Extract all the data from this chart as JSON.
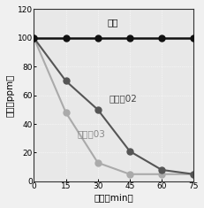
{
  "x": [
    0,
    15,
    30,
    45,
    60,
    75
  ],
  "series": [
    {
      "label": "暗所",
      "y": [
        100,
        100,
        100,
        100,
        100,
        100
      ],
      "color": "#111111",
      "linewidth": 1.8,
      "markersize": 5,
      "marker": "o",
      "zorder": 3
    },
    {
      "label": "催化刲02",
      "y": [
        100,
        70,
        50,
        21,
        8,
        5
      ],
      "color": "#555555",
      "linewidth": 1.5,
      "markersize": 5,
      "marker": "o",
      "zorder": 2
    },
    {
      "label": "催化刲03",
      "y": [
        100,
        48,
        13,
        5,
        5,
        5
      ],
      "color": "#aaaaaa",
      "linewidth": 1.5,
      "markersize": 5,
      "marker": "o",
      "zorder": 1
    }
  ],
  "xlabel": "时间（min）",
  "ylabel": "液度（ppm）",
  "xlim": [
    0,
    75
  ],
  "ylim": [
    0,
    120
  ],
  "xticks": [
    0,
    15,
    30,
    45,
    60,
    75
  ],
  "yticks": [
    0,
    20,
    40,
    60,
    80,
    100,
    120
  ],
  "label_positions": {
    "暗所": [
      37,
      111
    ],
    "催化刲02": [
      42,
      58
    ],
    "催化刲03": [
      27,
      33
    ]
  },
  "label_colors": {
    "暗所": "#111111",
    "催化刲02": "#444444",
    "催化刲03": "#888888"
  },
  "background_color": "#f0f0f0",
  "plot_bg_color": "#e8e8e8",
  "grid_color": "#ffffff",
  "font_size_label": 7.5,
  "font_size_tick": 6.5,
  "font_size_annotation": 7.5
}
